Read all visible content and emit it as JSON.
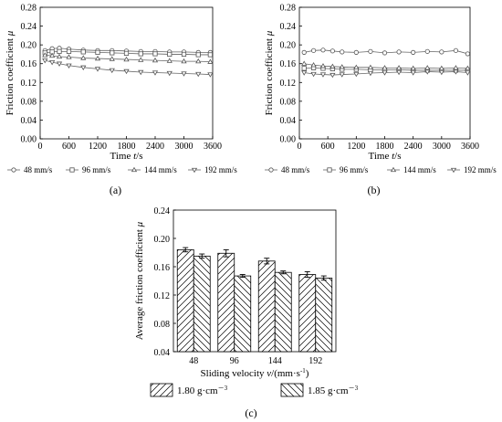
{
  "chart_data": [
    {
      "panel": "(a)",
      "type": "line",
      "xlabel_prefix": "Time ",
      "xlabel_var": "t",
      "xlabel_suffix": "/s",
      "ylabel_prefix": "Friction coefficient ",
      "ylabel_var": "μ",
      "xlim": [
        0,
        3600
      ],
      "ylim": [
        0.0,
        0.28
      ],
      "xticks": [
        0,
        600,
        1200,
        1800,
        2400,
        3000,
        3600
      ],
      "yticks": [
        "0.00",
        "0.04",
        "0.08",
        "0.12",
        "0.16",
        "0.20",
        "0.24",
        "0.28"
      ],
      "series": [
        {
          "name": "48 mm/s",
          "marker": "circle",
          "x": [
            100,
            250,
            400,
            600,
            900,
            1200,
            1500,
            1800,
            2100,
            2400,
            2700,
            3000,
            3300,
            3550
          ],
          "y": [
            0.188,
            0.192,
            0.193,
            0.191,
            0.189,
            0.188,
            0.188,
            0.187,
            0.186,
            0.186,
            0.185,
            0.185,
            0.184,
            0.184
          ]
        },
        {
          "name": "96 mm/s",
          "marker": "square",
          "x": [
            100,
            250,
            400,
            600,
            900,
            1200,
            1500,
            1800,
            2100,
            2400,
            2700,
            3000,
            3300,
            3550
          ],
          "y": [
            0.183,
            0.185,
            0.186,
            0.186,
            0.185,
            0.184,
            0.183,
            0.182,
            0.181,
            0.181,
            0.18,
            0.18,
            0.179,
            0.179
          ]
        },
        {
          "name": "144 mm/s",
          "marker": "triangle-up",
          "x": [
            100,
            250,
            400,
            600,
            900,
            1200,
            1500,
            1800,
            2100,
            2400,
            2700,
            3000,
            3300,
            3550
          ],
          "y": [
            0.178,
            0.177,
            0.175,
            0.174,
            0.172,
            0.171,
            0.17,
            0.169,
            0.168,
            0.167,
            0.166,
            0.165,
            0.165,
            0.164
          ]
        },
        {
          "name": "192 mm/s",
          "marker": "triangle-down",
          "x": [
            100,
            250,
            400,
            600,
            900,
            1200,
            1500,
            1800,
            2100,
            2400,
            2700,
            3000,
            3300,
            3550
          ],
          "y": [
            0.167,
            0.163,
            0.16,
            0.156,
            0.152,
            0.149,
            0.146,
            0.144,
            0.142,
            0.141,
            0.14,
            0.139,
            0.138,
            0.137
          ]
        }
      ]
    },
    {
      "panel": "(b)",
      "type": "line",
      "xlabel_prefix": "Time ",
      "xlabel_var": "t",
      "xlabel_suffix": "/s",
      "ylabel_prefix": "Friction coefficient ",
      "ylabel_var": "μ",
      "xlim": [
        0,
        3600
      ],
      "ylim": [
        0.0,
        0.28
      ],
      "xticks": [
        0,
        600,
        1200,
        1800,
        2400,
        3000,
        3600
      ],
      "yticks": [
        "0.00",
        "0.04",
        "0.08",
        "0.12",
        "0.16",
        "0.20",
        "0.24",
        "0.28"
      ],
      "series": [
        {
          "name": "48 mm/s",
          "marker": "circle",
          "x": [
            100,
            300,
            500,
            700,
            900,
            1200,
            1500,
            1800,
            2100,
            2400,
            2700,
            3000,
            3300,
            3550
          ],
          "y": [
            0.184,
            0.188,
            0.189,
            0.187,
            0.185,
            0.184,
            0.186,
            0.183,
            0.185,
            0.184,
            0.186,
            0.185,
            0.188,
            0.181
          ]
        },
        {
          "name": "96 mm/s",
          "marker": "square",
          "x": [
            100,
            300,
            500,
            700,
            900,
            1200,
            1500,
            1800,
            2100,
            2400,
            2700,
            3000,
            3300,
            3550
          ],
          "y": [
            0.15,
            0.151,
            0.15,
            0.149,
            0.148,
            0.148,
            0.147,
            0.147,
            0.147,
            0.146,
            0.146,
            0.146,
            0.146,
            0.146
          ]
        },
        {
          "name": "144 mm/s",
          "marker": "triangle-up",
          "x": [
            100,
            300,
            500,
            700,
            900,
            1200,
            1500,
            1800,
            2100,
            2400,
            2700,
            3000,
            3300,
            3550
          ],
          "y": [
            0.16,
            0.157,
            0.155,
            0.154,
            0.153,
            0.152,
            0.152,
            0.151,
            0.151,
            0.15,
            0.151,
            0.15,
            0.151,
            0.15
          ]
        },
        {
          "name": "192 mm/s",
          "marker": "triangle-down",
          "x": [
            100,
            300,
            500,
            700,
            900,
            1200,
            1500,
            1800,
            2100,
            2400,
            2700,
            3000,
            3300,
            3550
          ],
          "y": [
            0.141,
            0.138,
            0.137,
            0.136,
            0.137,
            0.138,
            0.14,
            0.141,
            0.142,
            0.141,
            0.143,
            0.142,
            0.143,
            0.141
          ]
        }
      ]
    },
    {
      "panel": "(c)",
      "type": "bar",
      "xlabel_prefix": "Sliding velocity ",
      "xlabel_var": "v",
      "xlabel_suffix": "/(mm·s",
      "xlabel_sup": "-1",
      "xlabel_end": ")",
      "ylabel": "Average friction coefficient ",
      "ylabel_var": "μ",
      "ylim": [
        0.04,
        0.24
      ],
      "yticks": [
        "0.04",
        "0.08",
        "0.12",
        "0.16",
        "0.20",
        "0.24"
      ],
      "categories": [
        "48",
        "96",
        "144",
        "192"
      ],
      "series": [
        {
          "name": "1.80 g·cm",
          "sup": "－3",
          "hatch": "forward",
          "values": [
            0.184,
            0.179,
            0.168,
            0.149
          ],
          "errors": [
            0.003,
            0.005,
            0.004,
            0.004
          ]
        },
        {
          "name": "1.85 g·cm",
          "sup": "－3",
          "hatch": "backward",
          "values": [
            0.175,
            0.147,
            0.152,
            0.144
          ],
          "errors": [
            0.003,
            0.002,
            0.002,
            0.003
          ]
        }
      ]
    }
  ]
}
